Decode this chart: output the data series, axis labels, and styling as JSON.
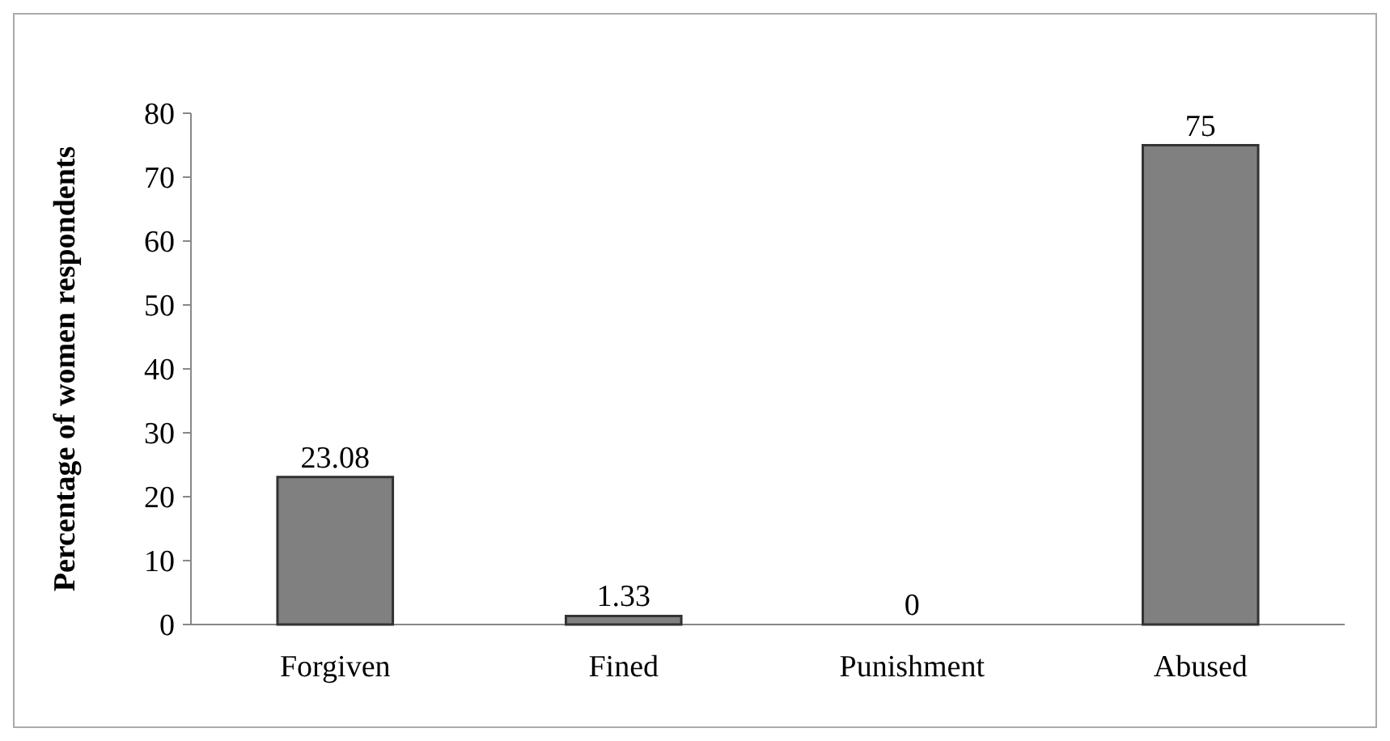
{
  "chart_data": {
    "type": "bar",
    "ylabel": "Percentage of women respondents",
    "categories": [
      "Forgiven",
      "Fined",
      "Punishment",
      "Abused"
    ],
    "values": [
      23.08,
      1.33,
      0,
      75
    ],
    "color": "#808080",
    "ylim": [
      0,
      80
    ],
    "yticks": [
      0,
      10,
      20,
      30,
      40,
      50,
      60,
      70,
      80
    ],
    "grid": false,
    "data_labels": true
  }
}
